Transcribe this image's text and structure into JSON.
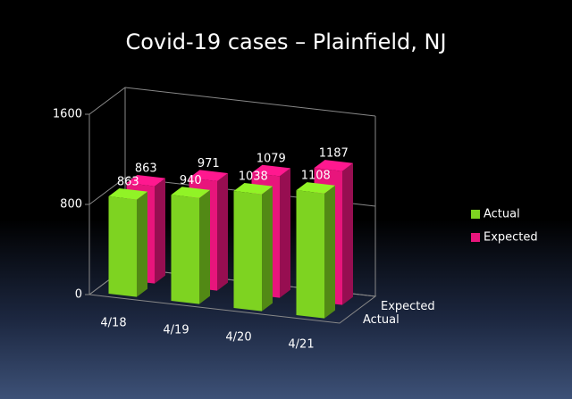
{
  "chart_data": {
    "type": "bar3d",
    "title": "Covid-19 cases  – Plainfield, NJ",
    "categories": [
      "4/18",
      "4/19",
      "4/20",
      "4/21"
    ],
    "series": [
      {
        "name": "Actual",
        "color": "#7ed321",
        "values": [
          863,
          940,
          1038,
          1108
        ]
      },
      {
        "name": "Expected",
        "color": "#e8157c",
        "values": [
          863,
          971,
          1079,
          1187
        ]
      }
    ],
    "ylim": [
      0,
      1600
    ],
    "yticks": [
      0,
      800,
      1600
    ],
    "grid": true,
    "legend": "right"
  }
}
